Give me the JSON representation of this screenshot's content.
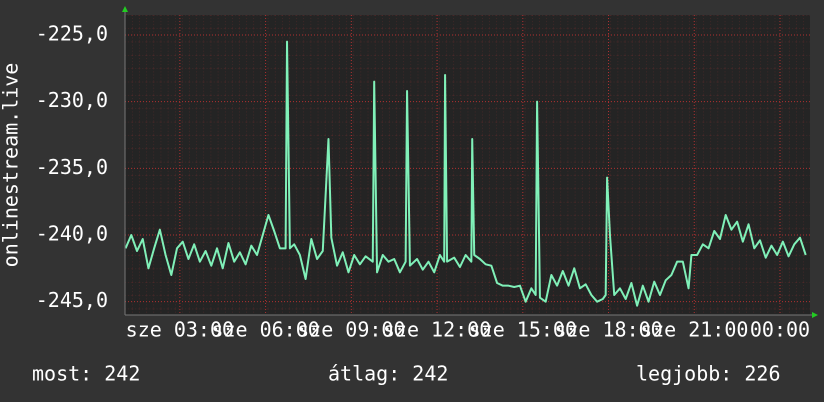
{
  "chart_data": {
    "type": "line",
    "y_label": "onlinestream.live",
    "x": [
      1.1,
      1.3,
      1.5,
      1.7,
      1.9,
      2.1,
      2.3,
      2.5,
      2.7,
      2.9,
      3.1,
      3.3,
      3.5,
      3.7,
      3.9,
      4.1,
      4.3,
      4.5,
      4.7,
      4.9,
      5.1,
      5.3,
      5.5,
      5.7,
      5.9,
      6.1,
      6.3,
      6.5,
      6.7,
      6.75,
      6.85,
      7.0,
      7.2,
      7.4,
      7.6,
      7.8,
      8.0,
      8.2,
      8.3,
      8.5,
      8.7,
      8.9,
      9.1,
      9.3,
      9.5,
      9.75,
      9.8,
      9.9,
      10.1,
      10.3,
      10.5,
      10.7,
      10.9,
      10.95,
      11.05,
      11.3,
      11.5,
      11.7,
      11.9,
      12.1,
      12.25,
      12.28,
      12.35,
      12.6,
      12.8,
      13.0,
      13.2,
      13.23,
      13.3,
      13.5,
      13.7,
      13.9,
      14.1,
      14.3,
      14.5,
      14.7,
      14.9,
      15.1,
      15.3,
      15.45,
      15.5,
      15.6,
      15.8,
      16.0,
      16.2,
      16.4,
      16.6,
      16.8,
      17.0,
      17.2,
      17.4,
      17.6,
      17.8,
      17.9,
      17.95,
      18.05,
      18.2,
      18.4,
      18.6,
      18.8,
      19.0,
      19.2,
      19.4,
      19.6,
      19.8,
      20.0,
      20.2,
      20.4,
      20.6,
      20.8,
      20.9,
      21.1,
      21.3,
      21.5,
      21.7,
      21.9,
      22.1,
      22.3,
      22.5,
      22.7,
      22.9,
      23.1,
      23.3,
      23.5,
      23.7,
      23.9,
      24.1,
      24.3,
      24.5,
      24.7,
      24.9
    ],
    "series": [
      {
        "name": "onlinestream.live",
        "color": "#80f0b8",
        "values": [
          -241,
          -240,
          -241.2,
          -240.3,
          -242.5,
          -241,
          -239.6,
          -241.5,
          -243,
          -241,
          -240.5,
          -241.8,
          -240.7,
          -242,
          -241.2,
          -242.3,
          -241,
          -242.5,
          -240.6,
          -242,
          -241.3,
          -242.2,
          -240.8,
          -241.5,
          -240,
          -238.5,
          -239.7,
          -241,
          -241,
          -225.5,
          -241,
          -240.7,
          -241.5,
          -243.3,
          -240.3,
          -241.8,
          -241.2,
          -232.8,
          -240.2,
          -242.3,
          -241.3,
          -242.8,
          -241.5,
          -242.2,
          -241.6,
          -242,
          -228.5,
          -242.8,
          -241.5,
          -242,
          -241.8,
          -242.8,
          -242,
          -229.2,
          -242.3,
          -241.8,
          -242.6,
          -242,
          -242.8,
          -241.5,
          -242,
          -228,
          -242,
          -241.7,
          -242.4,
          -241.5,
          -242,
          -232.8,
          -241.5,
          -241.8,
          -242.2,
          -242.3,
          -243.6,
          -243.8,
          -243.8,
          -243.9,
          -243.8,
          -245,
          -244,
          -244.5,
          -230,
          -244.7,
          -245,
          -243,
          -243.8,
          -242.7,
          -243.8,
          -242.5,
          -244,
          -243.7,
          -244.5,
          -245,
          -244.8,
          -244.5,
          -235.7,
          -240,
          -244.5,
          -244,
          -244.8,
          -243.6,
          -245.3,
          -243.8,
          -245,
          -243.5,
          -244.5,
          -243.4,
          -243,
          -242,
          -242,
          -244,
          -241.5,
          -241.5,
          -240.7,
          -241,
          -239.7,
          -240.3,
          -238.5,
          -239.6,
          -239,
          -240.5,
          -239.2,
          -241,
          -240.4,
          -241.7,
          -240.8,
          -241.5,
          -240.5,
          -241.6,
          -240.7,
          -240.2,
          -241.5
        ]
      }
    ],
    "xlim": [
      1.08,
      25.05
    ],
    "xticks": [
      {
        "value": 3,
        "label": "sze 03:00"
      },
      {
        "value": 6,
        "label": "sze 06:00"
      },
      {
        "value": 9,
        "label": "sze 09:00"
      },
      {
        "value": 12,
        "label": "sze 12:00"
      },
      {
        "value": 15,
        "label": "sze 15:00"
      },
      {
        "value": 18,
        "label": "sze 18:00"
      },
      {
        "value": 21,
        "label": "sze 21:00"
      },
      {
        "value": 24,
        "label": "00:00"
      }
    ],
    "ylim": [
      -246,
      -223.5
    ],
    "yticks": [
      {
        "value": -245,
        "label": "-245,0"
      },
      {
        "value": -240,
        "label": "-240,0"
      },
      {
        "value": -235,
        "label": "-235,0"
      },
      {
        "value": -230,
        "label": "-230,0"
      },
      {
        "value": -225,
        "label": "-225,0"
      }
    ],
    "grid": true,
    "grid_color": "#b03030",
    "stats": [
      "most: 242",
      "átlag: 242",
      "legjobb: 226"
    ]
  }
}
